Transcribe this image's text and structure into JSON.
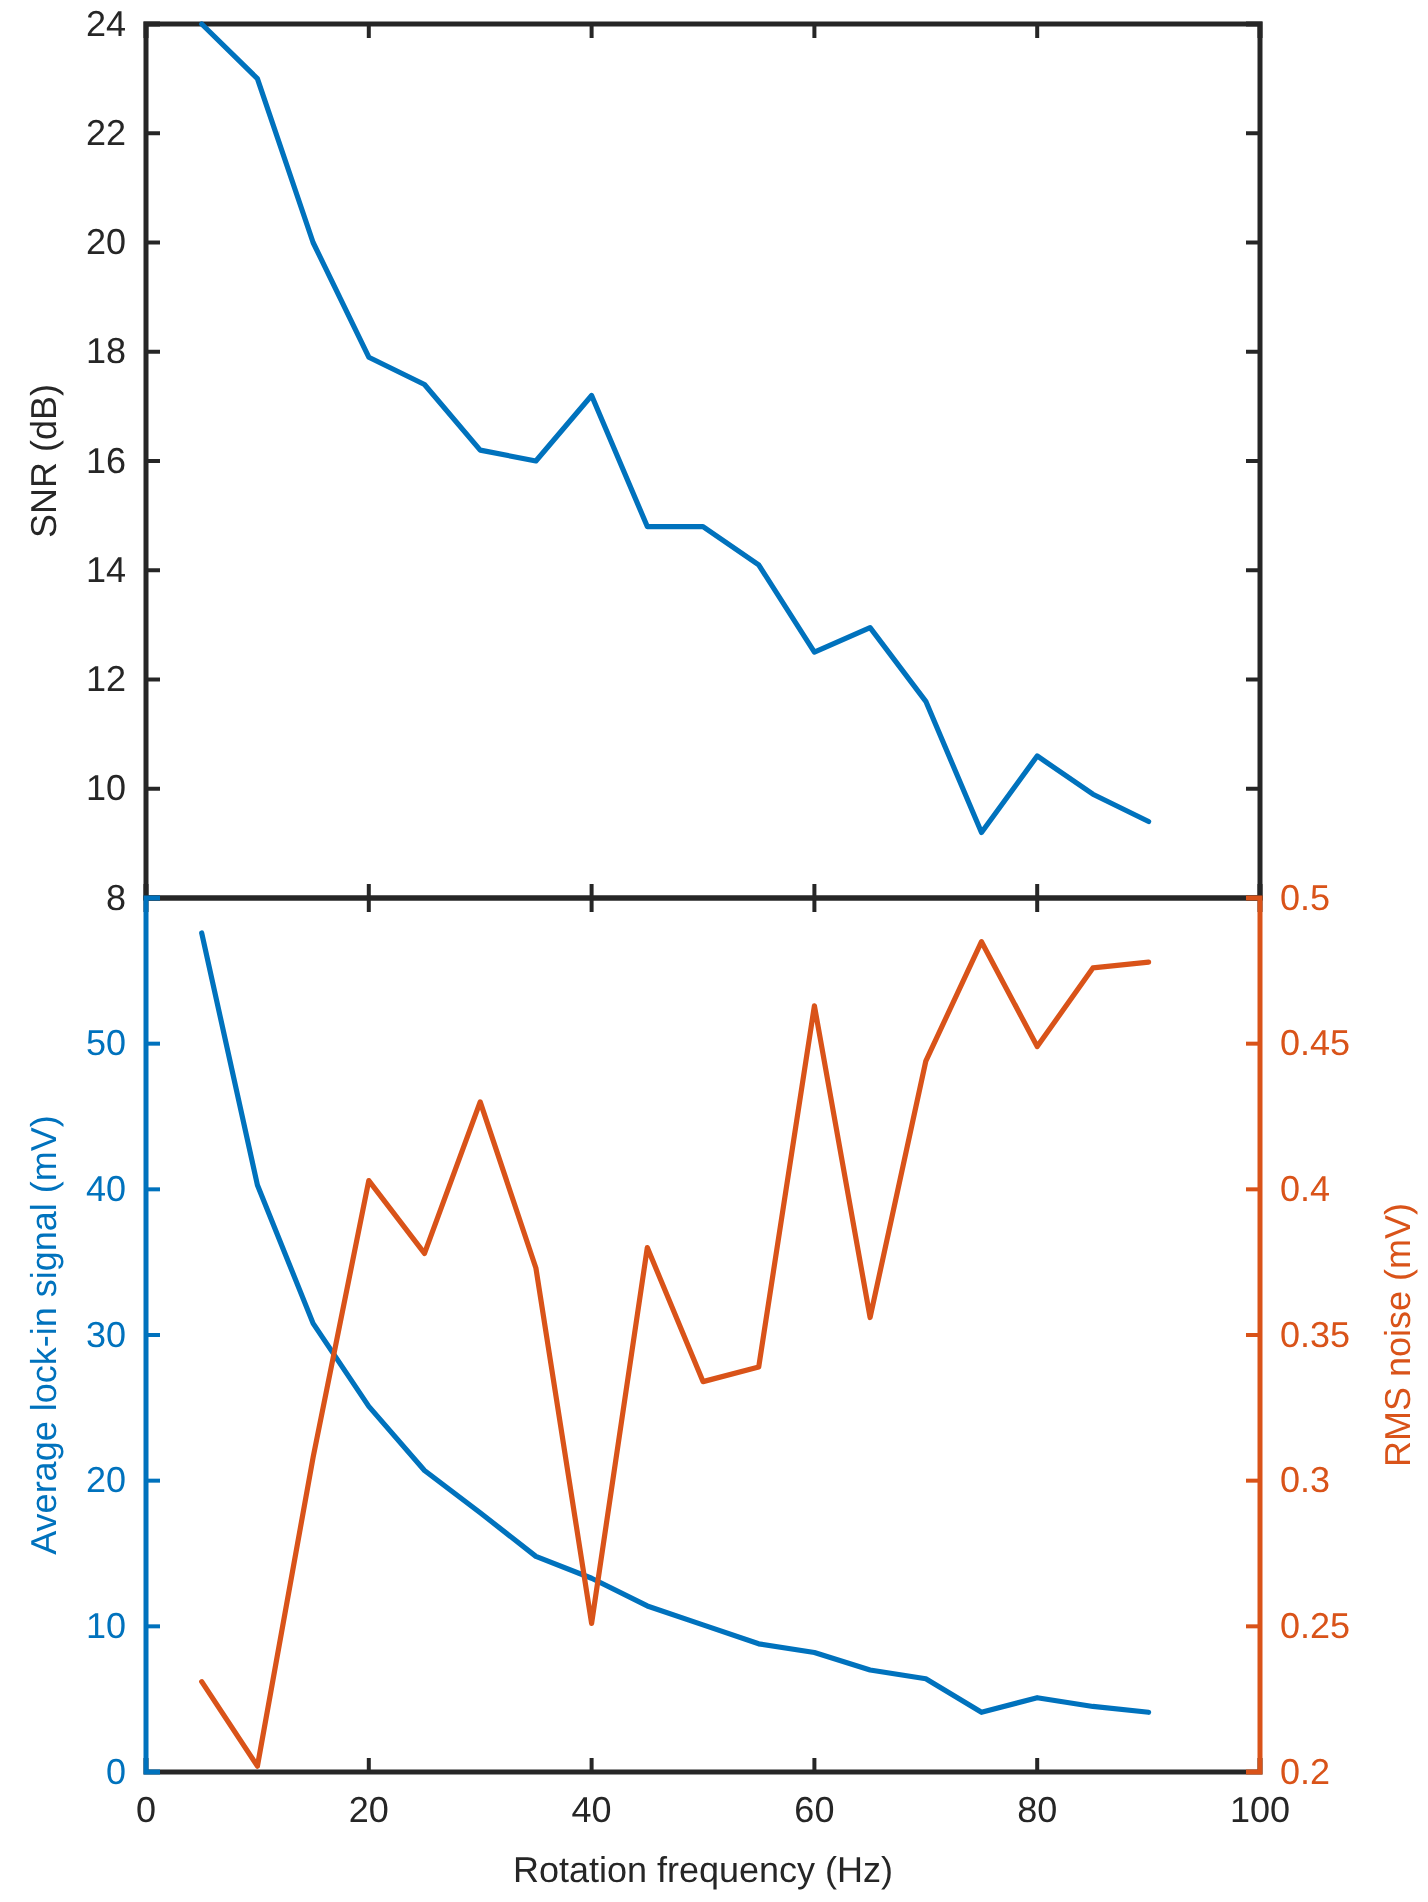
{
  "chart_data": [
    {
      "type": "line",
      "ylabel": "SNR (dB)",
      "x": [
        5,
        10,
        15,
        20,
        25,
        30,
        35,
        40,
        45,
        50,
        55,
        60,
        65,
        70,
        75,
        80,
        85,
        90
      ],
      "xlim": [
        0,
        100
      ],
      "xticks": [
        0,
        20,
        40,
        60,
        80,
        100
      ],
      "ylim": [
        8,
        24
      ],
      "yticks": [
        8,
        10,
        12,
        14,
        16,
        18,
        20,
        22,
        24
      ],
      "tick_labels": "y",
      "grid": false,
      "series": [
        {
          "color": "#0072bd",
          "values": [
            24,
            23,
            20,
            17.9,
            17.4,
            16.2,
            16.0,
            17.2,
            14.8,
            14.8,
            14.1,
            12.5,
            12.95,
            11.6,
            9.2,
            10.6,
            9.9,
            9.4
          ]
        }
      ]
    },
    {
      "type": "line",
      "xlabel": "Rotation frequency (Hz)",
      "ylabel": "Average lock-in signal (mV)",
      "y2label": "RMS noise (mV)",
      "x": [
        5,
        10,
        15,
        20,
        25,
        30,
        35,
        40,
        45,
        50,
        55,
        60,
        65,
        70,
        75,
        80,
        85,
        90
      ],
      "xlim": [
        0,
        100
      ],
      "xticks": [
        0,
        20,
        40,
        60,
        80,
        100
      ],
      "ylim": [
        0,
        60
      ],
      "yticks": [
        0,
        10,
        20,
        30,
        40,
        50
      ],
      "y2lim": [
        0.2,
        0.5
      ],
      "y2ticks": [
        0.2,
        0.25,
        0.3,
        0.35,
        0.4,
        0.45,
        0.5
      ],
      "grid": false,
      "series": [
        {
          "color": "#0072bd",
          "values": [
            57.6,
            40.3,
            30.8,
            25.1,
            20.7,
            17.8,
            14.8,
            13.3,
            11.4,
            10.1,
            8.8,
            8.2,
            7.0,
            6.4,
            4.1,
            5.1,
            4.5,
            4.1
          ]
        },
        {
          "color": "#d95319",
          "axis": "y2",
          "values": [
            0.231,
            0.202,
            0.308,
            0.403,
            0.378,
            0.43,
            0.373,
            0.251,
            0.38,
            0.334,
            0.339,
            0.463,
            0.356,
            0.444,
            0.485,
            0.449,
            0.476,
            0.478
          ]
        }
      ]
    }
  ]
}
